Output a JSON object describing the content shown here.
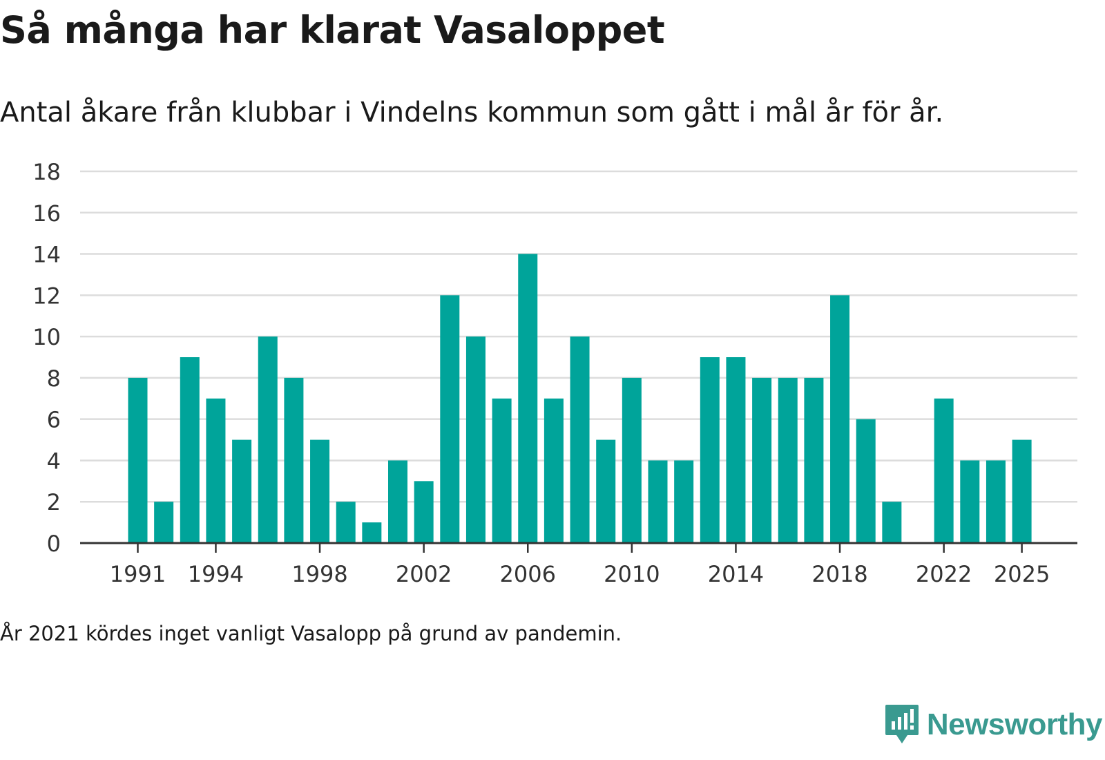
{
  "title": "Så många har klarat Vasaloppet",
  "subtitle": "Antal åkare från klubbar i Vindelns kommun som gått i mål år för år.",
  "footnote": "År 2021 kördes inget vanligt Vasalopp på grund av pandemin.",
  "brand": {
    "name": "Newsworthy",
    "logo_icon": "newsworthy-logo-icon"
  },
  "colors": {
    "bar": "#00a49a",
    "grid": "#dcdcdc",
    "axis": "#333333",
    "text": "#333333"
  },
  "chart_data": {
    "type": "bar",
    "title": "Så många har klarat Vasaloppet",
    "xlabel": "",
    "ylabel": "",
    "ylim": [
      0,
      18
    ],
    "yticks": [
      0,
      2,
      4,
      6,
      8,
      10,
      12,
      14,
      16,
      18
    ],
    "xticks": [
      1991,
      1994,
      1998,
      2002,
      2006,
      2010,
      2014,
      2018,
      2022,
      2025
    ],
    "categories": [
      1991,
      1992,
      1993,
      1994,
      1995,
      1996,
      1997,
      1998,
      1999,
      2000,
      2001,
      2002,
      2003,
      2004,
      2005,
      2006,
      2007,
      2008,
      2009,
      2010,
      2011,
      2012,
      2013,
      2014,
      2015,
      2016,
      2017,
      2018,
      2019,
      2020,
      2021,
      2022,
      2023,
      2024,
      2025
    ],
    "values": [
      8,
      2,
      9,
      7,
      5,
      10,
      8,
      5,
      2,
      1,
      4,
      3,
      12,
      10,
      7,
      14,
      7,
      10,
      5,
      8,
      4,
      4,
      9,
      9,
      8,
      8,
      8,
      12,
      6,
      2,
      null,
      7,
      4,
      4,
      5
    ],
    "grid": true,
    "legend": "none"
  }
}
